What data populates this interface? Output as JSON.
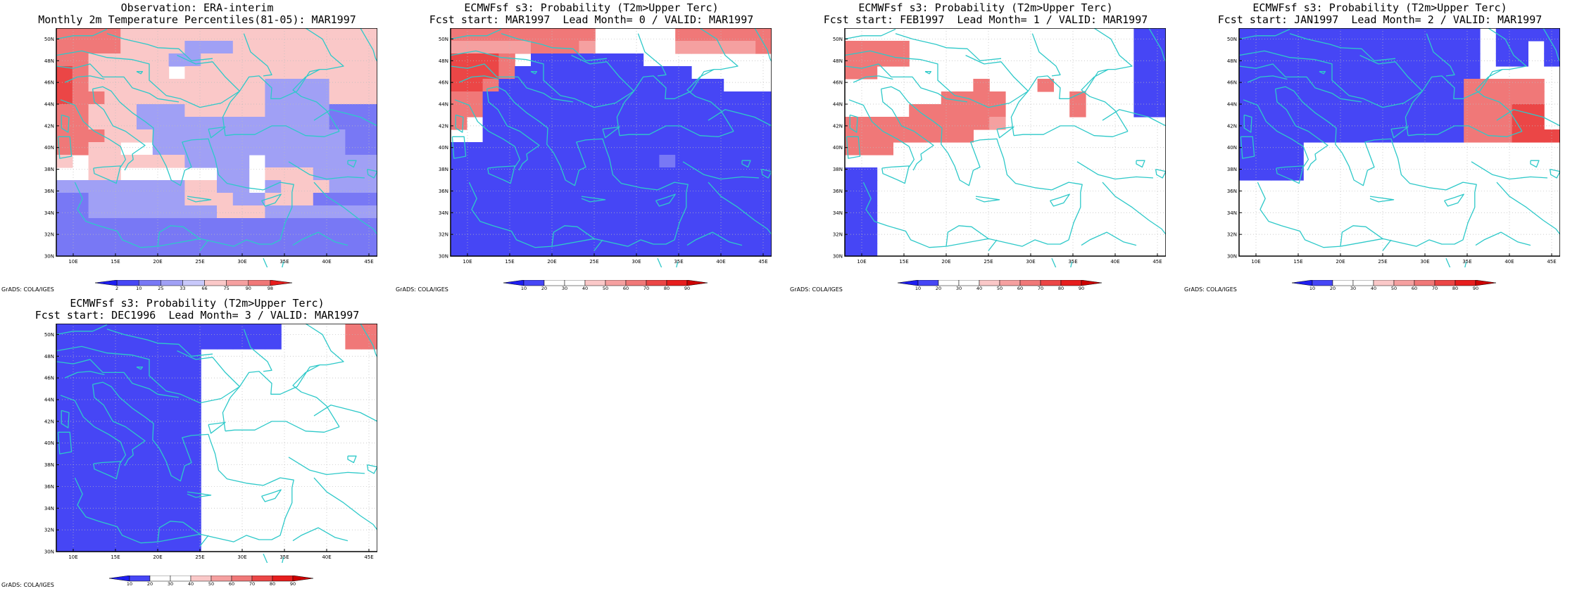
{
  "colors": {
    "coast": "#2ec9c9",
    "grid": "#bbbbbb",
    "frame": "#000000",
    "level_colors": [
      "#1e1ef0",
      "#4646f5",
      "#7878f5",
      "#a0a0f5",
      "#c8c8fa",
      "#ffffff",
      "#fac8c8",
      "#f5a0a0",
      "#f07878",
      "#eb4646",
      "#e61e1e",
      "#cc0000"
    ]
  },
  "panels": [
    {
      "title": "Observation: ERA-interim",
      "subtitle": "Monthly 2m Temperature Percentiles(81-05): MAR1997",
      "credit": "GrADS: COLA/IGES",
      "colorbar": [
        "2",
        "10",
        "25",
        "33",
        "66",
        "75",
        "90",
        "98"
      ],
      "longitudes": [
        "10E",
        "15E",
        "20E",
        "25E",
        "30E",
        "35E",
        "40E",
        "45E"
      ],
      "latitudes": [
        "30N",
        "32N",
        "34N",
        "36N",
        "38N",
        "40N",
        "42N",
        "44N",
        "46N",
        "48N",
        "50N"
      ],
      "grid_levels": [
        "88886666666666666666",
        "88886666333666666666",
        "88666663366666666666",
        "98666665666666666666",
        "98666666666663333666",
        "98866666666663333666",
        "88666333666663333222",
        "88666333333333333222",
        "88866633333333333322",
        "88665533333333333322",
        "65666666333353333333",
        "55665555553356663333",
        "33333333663353666333",
        "22333333666336662222",
        "22333333336663333333",
        "22222222222222222222",
        "22222222222222222222",
        "22222222222222222222"
      ]
    },
    {
      "title": "ECMWFsf s3: Probability (T2m>Upper Terc)",
      "subtitle": "Fcst start: MAR1997  Lead Month= 0 / VALID: MAR1997",
      "credit": "GrADS: COLA/IGES",
      "colorbar": [
        "10",
        "20",
        "30",
        "40",
        "50",
        "60",
        "70",
        "80",
        "90"
      ],
      "longitudes": [
        "10E",
        "15E",
        "20E",
        "25E",
        "30E",
        "35E",
        "40E",
        "45E"
      ],
      "latitudes": [
        "30N",
        "32N",
        "34N",
        "36N",
        "38N",
        "40N",
        "42N",
        "44N",
        "46N",
        "48N",
        "50N"
      ],
      "grid_levels": [
        "88888888855555888888",
        "77777888755555777778",
        "99985111111155555555",
        "99981111111111155555",
        "99811111111111111555",
        "88111111111111111111",
        "88111111111111111111",
        "85111111111111111111",
        "55111111111111111111",
        "11111111111111111111",
        "11111111111112111111",
        "11111111111111111111",
        "11111111111111111111",
        "11111111111111111111",
        "11111111111111111111",
        "11111111111111111111",
        "11111111111111111111",
        "11111111111111111111"
      ]
    },
    {
      "title": "ECMWFsf s3: Probability (T2m>Upper Terc)",
      "subtitle": "Fcst start: FEB1997  Lead Month= 1 / VALID: MAR1997",
      "credit": "GrADS: COLA/IGES",
      "colorbar": [
        "10",
        "20",
        "30",
        "40",
        "50",
        "60",
        "70",
        "80",
        "90"
      ],
      "longitudes": [
        "10E",
        "15E",
        "20E",
        "25E",
        "30E",
        "35E",
        "40E",
        "45E"
      ],
      "latitudes": [
        "30N",
        "32N",
        "34N",
        "36N",
        "38N",
        "40N",
        "42N",
        "44N",
        "46N",
        "48N",
        "50N"
      ],
      "grid_levels": [
        "55555555555555555511",
        "88885555555555555511",
        "88885555555555555511",
        "88555555555555555511",
        "55555555855585555511",
        "55555588885555855511",
        "55558888885555855511",
        "88888888875555555555",
        "88888888555555555555",
        "88855555555555555555",
        "55555555555555555555",
        "11555555555555555555",
        "11555555555555555555",
        "11555555555555555555",
        "11555555555555555555",
        "11555555555555555555",
        "11555555555555555555",
        "11555555555555555555"
      ]
    },
    {
      "title": "ECMWFsf s3: Probability (T2m>Upper Terc)",
      "subtitle": "Fcst start: JAN1997  Lead Month= 2 / VALID: MAR1997",
      "credit": "GrADS: COLA/IGES",
      "colorbar": [
        "10",
        "20",
        "30",
        "40",
        "50",
        "60",
        "70",
        "80",
        "90"
      ],
      "longitudes": [
        "10E",
        "15E",
        "20E",
        "25E",
        "30E",
        "35E",
        "40E",
        "45E"
      ],
      "latitudes": [
        "30N",
        "32N",
        "34N",
        "36N",
        "38N",
        "40N",
        "42N",
        "44N",
        "46N",
        "48N",
        "50N"
      ],
      "grid_levels": [
        "11111111111111151111",
        "11111111111111151151",
        "11111111111111151151",
        "11111111111111155555",
        "11111111111111888885",
        "11111111111111888885",
        "11111111111111888995",
        "11111111111111888995",
        "11111111111111888999",
        "11115555555555555555",
        "11115555555555555555",
        "11115555555555555555",
        "55555555555555555555",
        "55555555555555555555",
        "55555555555555555555",
        "55555555555555555555",
        "55555555555555555555",
        "55555555555555555555"
      ]
    },
    {
      "title": "ECMWFsf s3: Probability (T2m>Upper Terc)",
      "subtitle": "Fcst start: DEC1996  Lead Month= 3 / VALID: MAR1997",
      "credit": "GrADS: COLA/IGES",
      "colorbar": [
        "10",
        "20",
        "30",
        "40",
        "50",
        "60",
        "70",
        "80",
        "90"
      ],
      "longitudes": [
        "10E",
        "15E",
        "20E",
        "25E",
        "30E",
        "35E",
        "40E",
        "45E"
      ],
      "latitudes": [
        "30N",
        "32N",
        "34N",
        "36N",
        "38N",
        "40N",
        "42N",
        "44N",
        "46N",
        "48N",
        "50N"
      ],
      "grid_levels": [
        "11111111111111555588",
        "11111111111111555588",
        "11111111155555555555",
        "11111111155555555555",
        "11111111155555555555",
        "11111111155555555555",
        "11111111155555555555",
        "11111111155555555555",
        "11111111155555555555",
        "11111111155555555555",
        "11111111155555555555",
        "11111111155555555555",
        "11111111155555555555",
        "11111111155555555555",
        "11111111155555555555",
        "11111111155555555555",
        "11111111155555555555",
        "11111111155555555555"
      ]
    }
  ]
}
